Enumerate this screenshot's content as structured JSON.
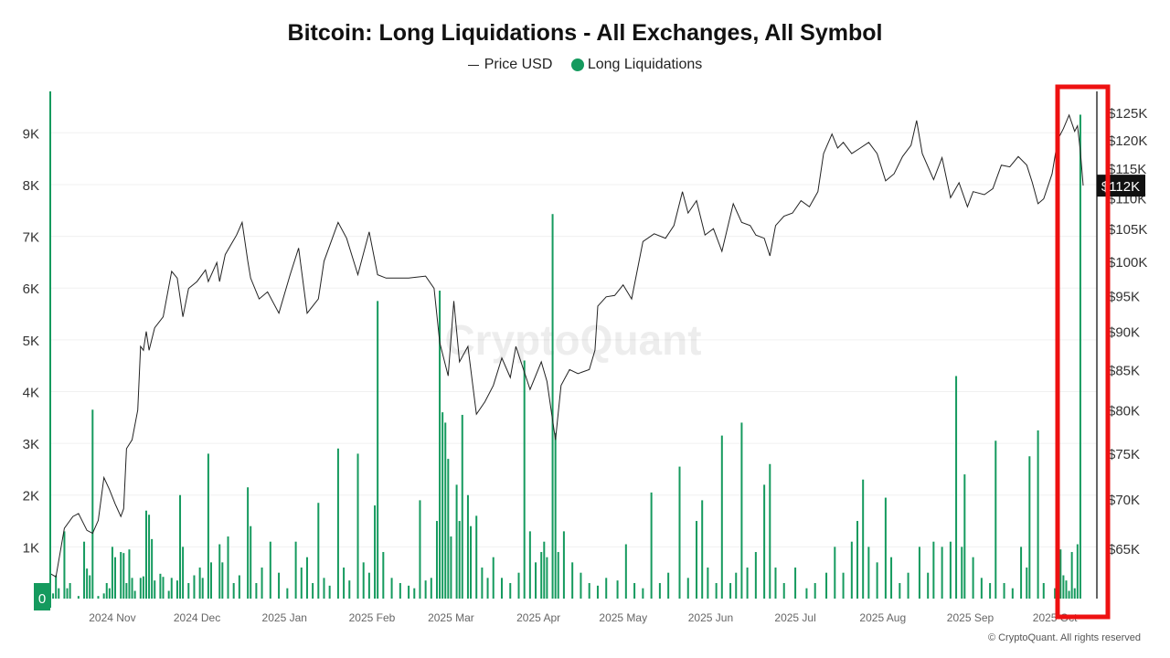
{
  "chart_data": {
    "type": "bar+line",
    "title": "Bitcoin: Long Liquidations - All Exchanges, All Symbol",
    "legend": [
      {
        "label": "Price USD",
        "color": "#222222",
        "marker": "line"
      },
      {
        "label": "Long Liquidations",
        "color": "#159a5e",
        "marker": "dot"
      }
    ],
    "legend_placement": "top-center",
    "x_range": [
      "2024-10-10",
      "2025-10-11"
    ],
    "x_ticks": [
      {
        "date": "2024-11-01",
        "label": "2024 Nov"
      },
      {
        "date": "2024-12-01",
        "label": "2024 Dec"
      },
      {
        "date": "2025-01-01",
        "label": "2025 Jan"
      },
      {
        "date": "2025-02-01",
        "label": "2025 Feb"
      },
      {
        "date": "2025-03-01",
        "label": "2025 Mar"
      },
      {
        "date": "2025-04-01",
        "label": "2025 Apr"
      },
      {
        "date": "2025-05-01",
        "label": "2025 May"
      },
      {
        "date": "2025-06-01",
        "label": "2025 Jun"
      },
      {
        "date": "2025-07-01",
        "label": "2025 Jul"
      },
      {
        "date": "2025-08-01",
        "label": "2025 Aug"
      },
      {
        "date": "2025-09-01",
        "label": "2025 Sep"
      },
      {
        "date": "2025-10-01",
        "label": "2025 Oct"
      }
    ],
    "y_left": {
      "range": [
        0,
        9800
      ],
      "ticks": [
        0,
        1000,
        2000,
        3000,
        4000,
        5000,
        6000,
        7000,
        8000,
        9000
      ],
      "labels": [
        "0",
        "1K",
        "2K",
        "3K",
        "4K",
        "5K",
        "6K",
        "7K",
        "8K",
        "9K"
      ],
      "axis_color": "#159a5e"
    },
    "y_right": {
      "scale": "log",
      "range": [
        60300,
        129000
      ],
      "ticks": [
        65000,
        70000,
        75000,
        80000,
        85000,
        90000,
        95000,
        100000,
        105000,
        110000,
        115000,
        120000,
        125000
      ],
      "labels": [
        "$65K",
        "$70K",
        "$75K",
        "$80K",
        "$85K",
        "$90K",
        "$95K",
        "$100K",
        "$105K",
        "$110K",
        "$115K",
        "$120K",
        "$125K"
      ]
    },
    "grid": true,
    "current_price_label": "$112K",
    "zero_label": "0",
    "highlight_box_color": "#ee1111",
    "price_series": [
      [
        "2024-10-10",
        62600
      ],
      [
        "2024-10-12",
        62300
      ],
      [
        "2024-10-15",
        67000
      ],
      [
        "2024-10-18",
        68200
      ],
      [
        "2024-10-20",
        68500
      ],
      [
        "2024-10-23",
        66800
      ],
      [
        "2024-10-25",
        66500
      ],
      [
        "2024-10-27",
        67800
      ],
      [
        "2024-10-29",
        72300
      ],
      [
        "2024-10-31",
        71000
      ],
      [
        "2024-11-02",
        69500
      ],
      [
        "2024-11-04",
        68200
      ],
      [
        "2024-11-05",
        69000
      ],
      [
        "2024-11-06",
        75500
      ],
      [
        "2024-11-08",
        76500
      ],
      [
        "2024-11-10",
        80000
      ],
      [
        "2024-11-11",
        88000
      ],
      [
        "2024-11-12",
        87500
      ],
      [
        "2024-11-13",
        90000
      ],
      [
        "2024-11-14",
        87500
      ],
      [
        "2024-11-16",
        90500
      ],
      [
        "2024-11-19",
        92000
      ],
      [
        "2024-11-22",
        98500
      ],
      [
        "2024-11-24",
        97500
      ],
      [
        "2024-11-26",
        92000
      ],
      [
        "2024-11-28",
        96000
      ],
      [
        "2024-12-01",
        97000
      ],
      [
        "2024-12-04",
        98700
      ],
      [
        "2024-12-05",
        97000
      ],
      [
        "2024-12-08",
        99800
      ],
      [
        "2024-12-09",
        97000
      ],
      [
        "2024-12-11",
        101000
      ],
      [
        "2024-12-15",
        104000
      ],
      [
        "2024-12-17",
        106000
      ],
      [
        "2024-12-19",
        100000
      ],
      [
        "2024-12-20",
        97500
      ],
      [
        "2024-12-23",
        94500
      ],
      [
        "2024-12-26",
        95500
      ],
      [
        "2024-12-30",
        92500
      ],
      [
        "2025-01-03",
        98000
      ],
      [
        "2025-01-06",
        102000
      ],
      [
        "2025-01-09",
        92500
      ],
      [
        "2025-01-13",
        94500
      ],
      [
        "2025-01-15",
        100000
      ],
      [
        "2025-01-20",
        106000
      ],
      [
        "2025-01-23",
        103500
      ],
      [
        "2025-01-27",
        98000
      ],
      [
        "2025-01-31",
        104500
      ],
      [
        "2025-02-03",
        98000
      ],
      [
        "2025-02-06",
        97500
      ],
      [
        "2025-02-10",
        97500
      ],
      [
        "2025-02-14",
        97500
      ],
      [
        "2025-02-20",
        97800
      ],
      [
        "2025-02-23",
        96000
      ],
      [
        "2025-02-25",
        88500
      ],
      [
        "2025-02-28",
        84200
      ],
      [
        "2025-03-02",
        94200
      ],
      [
        "2025-03-04",
        86000
      ],
      [
        "2025-03-07",
        88000
      ],
      [
        "2025-03-10",
        79500
      ],
      [
        "2025-03-13",
        81000
      ],
      [
        "2025-03-16",
        83000
      ],
      [
        "2025-03-19",
        86500
      ],
      [
        "2025-03-22",
        84000
      ],
      [
        "2025-03-24",
        88000
      ],
      [
        "2025-03-29",
        82500
      ],
      [
        "2025-04-02",
        86000
      ],
      [
        "2025-04-04",
        83500
      ],
      [
        "2025-04-07",
        76500
      ],
      [
        "2025-04-09",
        83000
      ],
      [
        "2025-04-12",
        85000
      ],
      [
        "2025-04-15",
        84500
      ],
      [
        "2025-04-19",
        85000
      ],
      [
        "2025-04-21",
        87500
      ],
      [
        "2025-04-22",
        93500
      ],
      [
        "2025-04-25",
        94800
      ],
      [
        "2025-04-28",
        95000
      ],
      [
        "2025-05-01",
        96500
      ],
      [
        "2025-05-04",
        94500
      ],
      [
        "2025-05-08",
        103000
      ],
      [
        "2025-05-12",
        104200
      ],
      [
        "2025-05-16",
        103500
      ],
      [
        "2025-05-19",
        105500
      ],
      [
        "2025-05-22",
        111000
      ],
      [
        "2025-05-24",
        107500
      ],
      [
        "2025-05-27",
        109500
      ],
      [
        "2025-05-30",
        104000
      ],
      [
        "2025-06-02",
        105000
      ],
      [
        "2025-06-05",
        101500
      ],
      [
        "2025-06-09",
        109000
      ],
      [
        "2025-06-12",
        106000
      ],
      [
        "2025-06-15",
        105500
      ],
      [
        "2025-06-17",
        104000
      ],
      [
        "2025-06-20",
        103500
      ],
      [
        "2025-06-22",
        100800
      ],
      [
        "2025-06-24",
        105500
      ],
      [
        "2025-06-27",
        107000
      ],
      [
        "2025-06-30",
        107500
      ],
      [
        "2025-07-03",
        109500
      ],
      [
        "2025-07-06",
        108500
      ],
      [
        "2025-07-09",
        111000
      ],
      [
        "2025-07-11",
        117500
      ],
      [
        "2025-07-14",
        121000
      ],
      [
        "2025-07-16",
        118500
      ],
      [
        "2025-07-18",
        119500
      ],
      [
        "2025-07-21",
        117500
      ],
      [
        "2025-07-24",
        118500
      ],
      [
        "2025-07-27",
        119500
      ],
      [
        "2025-07-30",
        117500
      ],
      [
        "2025-08-02",
        112800
      ],
      [
        "2025-08-05",
        114000
      ],
      [
        "2025-08-08",
        117000
      ],
      [
        "2025-08-11",
        119000
      ],
      [
        "2025-08-13",
        123500
      ],
      [
        "2025-08-15",
        117500
      ],
      [
        "2025-08-19",
        113000
      ],
      [
        "2025-08-22",
        116800
      ],
      [
        "2025-08-25",
        110000
      ],
      [
        "2025-08-28",
        112500
      ],
      [
        "2025-08-31",
        108500
      ],
      [
        "2025-09-02",
        111000
      ],
      [
        "2025-09-06",
        110500
      ],
      [
        "2025-09-09",
        111500
      ],
      [
        "2025-09-12",
        115500
      ],
      [
        "2025-09-15",
        115200
      ],
      [
        "2025-09-18",
        117000
      ],
      [
        "2025-09-21",
        115500
      ],
      [
        "2025-09-23",
        112500
      ],
      [
        "2025-09-25",
        109000
      ],
      [
        "2025-09-27",
        109800
      ],
      [
        "2025-09-30",
        114000
      ],
      [
        "2025-10-02",
        120000
      ],
      [
        "2025-10-04",
        122000
      ],
      [
        "2025-10-06",
        124500
      ],
      [
        "2025-10-08",
        121500
      ],
      [
        "2025-10-09",
        122500
      ],
      [
        "2025-10-10",
        118000
      ],
      [
        "2025-10-11",
        112000
      ]
    ],
    "liquidation_series": [
      [
        "2024-10-11",
        100
      ],
      [
        "2024-10-12",
        450
      ],
      [
        "2024-10-13",
        200
      ],
      [
        "2024-10-15",
        1300
      ],
      [
        "2024-10-16",
        200
      ],
      [
        "2024-10-17",
        300
      ],
      [
        "2024-10-20",
        50
      ],
      [
        "2024-10-22",
        1100
      ],
      [
        "2024-10-23",
        580
      ],
      [
        "2024-10-24",
        450
      ],
      [
        "2024-10-25",
        3650
      ],
      [
        "2024-10-27",
        50
      ],
      [
        "2024-10-29",
        100
      ],
      [
        "2024-10-30",
        300
      ],
      [
        "2024-10-31",
        200
      ],
      [
        "2024-11-01",
        1000
      ],
      [
        "2024-11-02",
        800
      ],
      [
        "2024-11-04",
        900
      ],
      [
        "2024-11-05",
        880
      ],
      [
        "2024-11-06",
        300
      ],
      [
        "2024-11-07",
        950
      ],
      [
        "2024-11-08",
        400
      ],
      [
        "2024-11-09",
        150
      ],
      [
        "2024-11-11",
        400
      ],
      [
        "2024-11-12",
        430
      ],
      [
        "2024-11-13",
        1700
      ],
      [
        "2024-11-14",
        1620
      ],
      [
        "2024-11-15",
        1150
      ],
      [
        "2024-11-16",
        350
      ],
      [
        "2024-11-18",
        480
      ],
      [
        "2024-11-19",
        420
      ],
      [
        "2024-11-21",
        150
      ],
      [
        "2024-11-22",
        400
      ],
      [
        "2024-11-24",
        350
      ],
      [
        "2024-11-25",
        2000
      ],
      [
        "2024-11-26",
        1000
      ],
      [
        "2024-11-28",
        300
      ],
      [
        "2024-11-30",
        450
      ],
      [
        "2024-12-02",
        600
      ],
      [
        "2024-12-03",
        400
      ],
      [
        "2024-12-05",
        2800
      ],
      [
        "2024-12-06",
        700
      ],
      [
        "2024-12-09",
        1050
      ],
      [
        "2024-12-10",
        700
      ],
      [
        "2024-12-12",
        1200
      ],
      [
        "2024-12-14",
        300
      ],
      [
        "2024-12-16",
        450
      ],
      [
        "2024-12-19",
        2150
      ],
      [
        "2024-12-20",
        1400
      ],
      [
        "2024-12-22",
        300
      ],
      [
        "2024-12-24",
        600
      ],
      [
        "2024-12-27",
        1100
      ],
      [
        "2024-12-30",
        500
      ],
      [
        "2025-01-02",
        200
      ],
      [
        "2025-01-05",
        1100
      ],
      [
        "2025-01-07",
        600
      ],
      [
        "2025-01-09",
        800
      ],
      [
        "2025-01-11",
        300
      ],
      [
        "2025-01-13",
        1850
      ],
      [
        "2025-01-15",
        400
      ],
      [
        "2025-01-17",
        250
      ],
      [
        "2025-01-20",
        2900
      ],
      [
        "2025-01-22",
        600
      ],
      [
        "2025-01-24",
        350
      ],
      [
        "2025-01-27",
        2800
      ],
      [
        "2025-01-29",
        700
      ],
      [
        "2025-01-31",
        500
      ],
      [
        "2025-02-02",
        1800
      ],
      [
        "2025-02-03",
        5750
      ],
      [
        "2025-02-05",
        900
      ],
      [
        "2025-02-08",
        400
      ],
      [
        "2025-02-11",
        300
      ],
      [
        "2025-02-14",
        250
      ],
      [
        "2025-02-16",
        200
      ],
      [
        "2025-02-18",
        1900
      ],
      [
        "2025-02-20",
        350
      ],
      [
        "2025-02-22",
        400
      ],
      [
        "2025-02-24",
        1500
      ],
      [
        "2025-02-25",
        5950
      ],
      [
        "2025-02-26",
        3600
      ],
      [
        "2025-02-27",
        3400
      ],
      [
        "2025-02-28",
        2700
      ],
      [
        "2025-03-01",
        1200
      ],
      [
        "2025-03-03",
        2200
      ],
      [
        "2025-03-04",
        1500
      ],
      [
        "2025-03-05",
        3550
      ],
      [
        "2025-03-07",
        2000
      ],
      [
        "2025-03-08",
        1400
      ],
      [
        "2025-03-10",
        1600
      ],
      [
        "2025-03-12",
        600
      ],
      [
        "2025-03-14",
        400
      ],
      [
        "2025-03-16",
        800
      ],
      [
        "2025-03-19",
        400
      ],
      [
        "2025-03-22",
        300
      ],
      [
        "2025-03-25",
        500
      ],
      [
        "2025-03-27",
        4600
      ],
      [
        "2025-03-29",
        1300
      ],
      [
        "2025-03-31",
        700
      ],
      [
        "2025-04-02",
        900
      ],
      [
        "2025-04-03",
        1100
      ],
      [
        "2025-04-04",
        800
      ],
      [
        "2025-04-06",
        7430
      ],
      [
        "2025-04-07",
        3200
      ],
      [
        "2025-04-08",
        900
      ],
      [
        "2025-04-10",
        1300
      ],
      [
        "2025-04-13",
        700
      ],
      [
        "2025-04-16",
        500
      ],
      [
        "2025-04-19",
        300
      ],
      [
        "2025-04-22",
        250
      ],
      [
        "2025-04-25",
        400
      ],
      [
        "2025-04-29",
        350
      ],
      [
        "2025-05-02",
        1050
      ],
      [
        "2025-05-05",
        300
      ],
      [
        "2025-05-08",
        200
      ],
      [
        "2025-05-11",
        2050
      ],
      [
        "2025-05-14",
        300
      ],
      [
        "2025-05-17",
        500
      ],
      [
        "2025-05-21",
        2550
      ],
      [
        "2025-05-24",
        400
      ],
      [
        "2025-05-27",
        1500
      ],
      [
        "2025-05-29",
        1900
      ],
      [
        "2025-05-31",
        600
      ],
      [
        "2025-06-03",
        300
      ],
      [
        "2025-06-05",
        3150
      ],
      [
        "2025-06-08",
        300
      ],
      [
        "2025-06-10",
        500
      ],
      [
        "2025-06-12",
        3400
      ],
      [
        "2025-06-14",
        600
      ],
      [
        "2025-06-17",
        900
      ],
      [
        "2025-06-20",
        2200
      ],
      [
        "2025-06-22",
        2600
      ],
      [
        "2025-06-24",
        600
      ],
      [
        "2025-06-27",
        300
      ],
      [
        "2025-07-01",
        600
      ],
      [
        "2025-07-05",
        200
      ],
      [
        "2025-07-08",
        300
      ],
      [
        "2025-07-12",
        500
      ],
      [
        "2025-07-15",
        1000
      ],
      [
        "2025-07-18",
        500
      ],
      [
        "2025-07-21",
        1100
      ],
      [
        "2025-07-23",
        1500
      ],
      [
        "2025-07-25",
        2300
      ],
      [
        "2025-07-27",
        1000
      ],
      [
        "2025-07-30",
        700
      ],
      [
        "2025-08-02",
        1950
      ],
      [
        "2025-08-04",
        800
      ],
      [
        "2025-08-07",
        300
      ],
      [
        "2025-08-10",
        500
      ],
      [
        "2025-08-14",
        1000
      ],
      [
        "2025-08-17",
        500
      ],
      [
        "2025-08-19",
        1100
      ],
      [
        "2025-08-22",
        1000
      ],
      [
        "2025-08-25",
        1100
      ],
      [
        "2025-08-27",
        4300
      ],
      [
        "2025-08-29",
        1000
      ],
      [
        "2025-08-30",
        2400
      ],
      [
        "2025-09-02",
        800
      ],
      [
        "2025-09-05",
        400
      ],
      [
        "2025-09-08",
        300
      ],
      [
        "2025-09-10",
        3050
      ],
      [
        "2025-09-13",
        300
      ],
      [
        "2025-09-16",
        200
      ],
      [
        "2025-09-19",
        1000
      ],
      [
        "2025-09-21",
        600
      ],
      [
        "2025-09-22",
        2750
      ],
      [
        "2025-09-25",
        3250
      ],
      [
        "2025-09-27",
        300
      ],
      [
        "2025-10-01",
        200
      ],
      [
        "2025-10-03",
        950
      ],
      [
        "2025-10-04",
        450
      ],
      [
        "2025-10-05",
        350
      ],
      [
        "2025-10-06",
        150
      ],
      [
        "2025-10-07",
        900
      ],
      [
        "2025-10-08",
        200
      ],
      [
        "2025-10-09",
        1050
      ],
      [
        "2025-10-10",
        9350
      ]
    ]
  },
  "watermark": "CryptoQuant",
  "footer": "© CryptoQuant. All rights reserved"
}
